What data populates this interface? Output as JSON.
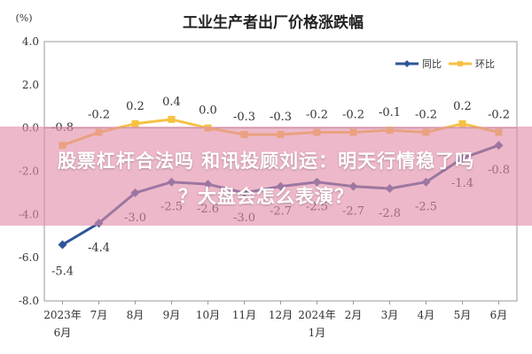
{
  "chart_data": {
    "type": "line",
    "title": "工业生产者出厂价格涨跌幅",
    "unit_label": "(%)",
    "ylim": [
      -8.0,
      4.0
    ],
    "yticks": [
      "4.0",
      "2.0",
      "0.0",
      "-2.0",
      "-4.0",
      "-6.0",
      "-8.0"
    ],
    "ytick_values": [
      4,
      2,
      0,
      -2,
      -4,
      -6,
      -8
    ],
    "categories": [
      {
        "line1": "2023年",
        "line2": "6月"
      },
      {
        "line1": "7月",
        "line2": ""
      },
      {
        "line1": "8月",
        "line2": ""
      },
      {
        "line1": "9月",
        "line2": ""
      },
      {
        "line1": "10月",
        "line2": ""
      },
      {
        "line1": "11月",
        "line2": ""
      },
      {
        "line1": "12月",
        "line2": ""
      },
      {
        "line1": "2024年",
        "line2": "1月"
      },
      {
        "line1": "2月",
        "line2": ""
      },
      {
        "line1": "3月",
        "line2": ""
      },
      {
        "line1": "4月",
        "line2": ""
      },
      {
        "line1": "5月",
        "line2": ""
      },
      {
        "line1": "6月",
        "line2": ""
      }
    ],
    "series": [
      {
        "name": "同比",
        "color": "#2f5597",
        "values": [
          -5.4,
          -4.4,
          -3.0,
          -2.5,
          -2.6,
          -3.0,
          -2.7,
          -2.5,
          -2.7,
          -2.8,
          -2.5,
          -1.4,
          -0.8
        ],
        "labels": [
          "-5.4",
          "-4.4",
          "-3.0",
          "-2.5",
          "-2.6",
          "-3.0",
          "-2.7",
          "-2.5",
          "-2.7",
          "-2.8",
          "-2.5",
          "-1.4",
          "-0.8"
        ]
      },
      {
        "name": "环比",
        "color": "#f5c242",
        "values": [
          -0.8,
          -0.2,
          0.2,
          0.4,
          0.0,
          -0.3,
          -0.3,
          -0.2,
          -0.2,
          -0.1,
          -0.2,
          0.2,
          -0.2
        ],
        "labels": [
          "-0.8",
          "-0.2",
          "0.2",
          "0.4",
          "0.0",
          "-0.3",
          "-0.3",
          "-0.2",
          "-0.2",
          "-0.1",
          "-0.2",
          "0.2",
          "-0.2"
        ]
      }
    ],
    "legend": "top-right",
    "grid": false
  },
  "banner": {
    "line1": "股票杠杆合法吗 和讯投顾刘运：明天行情稳了吗",
    "line2": "？大盘会怎么表演？"
  }
}
